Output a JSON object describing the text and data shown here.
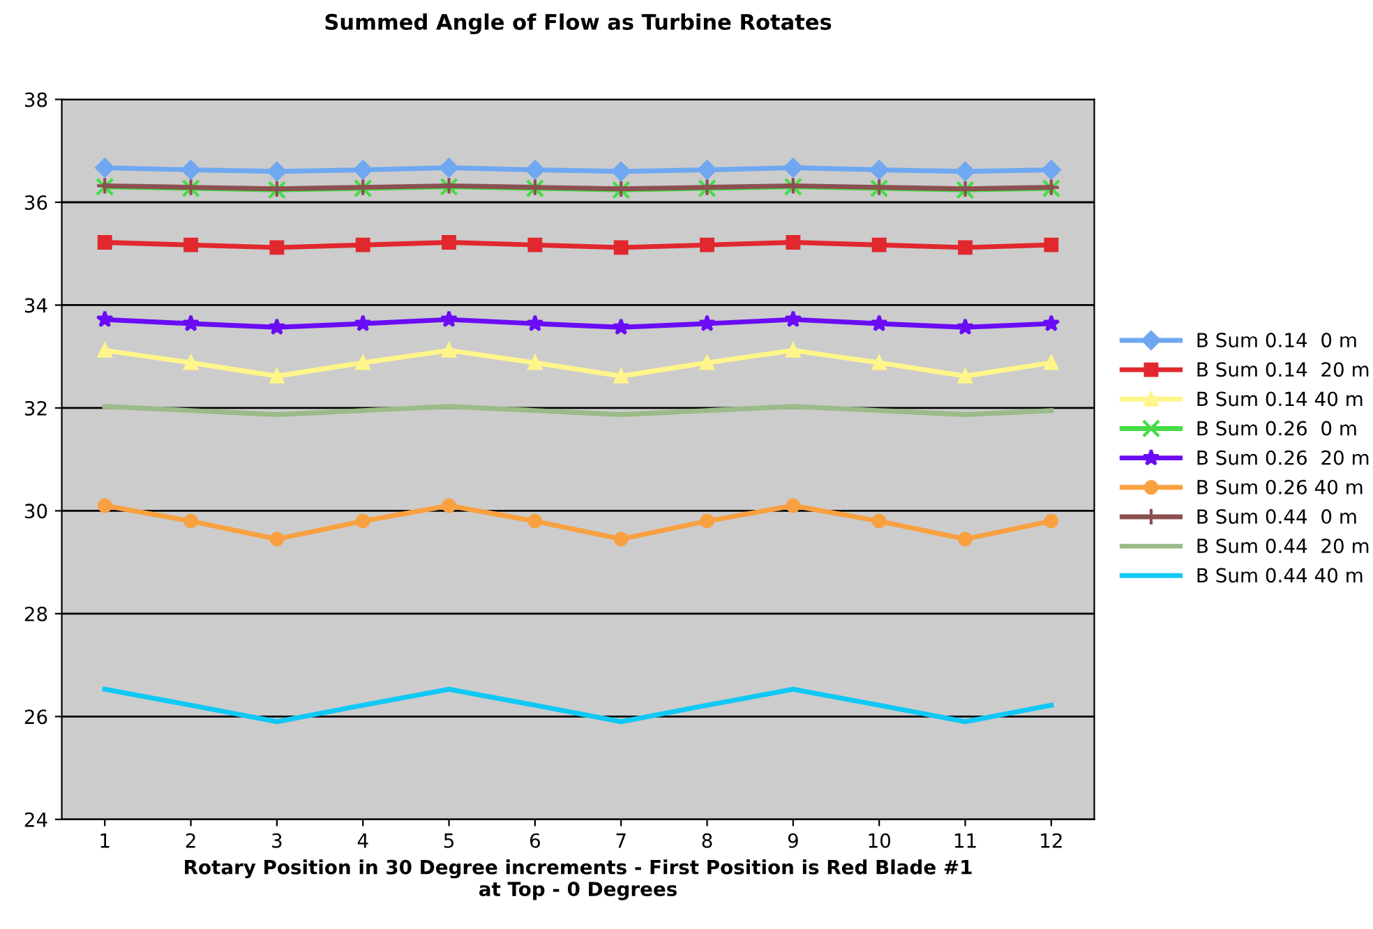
{
  "chart_data": {
    "type": "line",
    "title": "Summed Angle of Flow as Turbine Rotates",
    "xlabel": "Rotary Position in 30 Degree increments - First Position is Red Blade #1\nat Top - 0 Degrees",
    "categories": [
      "1",
      "2",
      "3",
      "4",
      "5",
      "6",
      "7",
      "8",
      "9",
      "10",
      "11",
      "12"
    ],
    "series": [
      {
        "name": "B Sum 0.14  0 m",
        "color": "#6fa8f0",
        "marker": "diamond",
        "values": [
          36.67,
          36.63,
          36.6,
          36.63,
          36.67,
          36.63,
          36.6,
          36.63,
          36.67,
          36.63,
          36.6,
          36.63
        ]
      },
      {
        "name": "B Sum 0.14  20 m",
        "color": "#e0282e",
        "marker": "square",
        "values": [
          35.22,
          35.17,
          35.12,
          35.17,
          35.22,
          35.17,
          35.12,
          35.17,
          35.22,
          35.17,
          35.12,
          35.17
        ]
      },
      {
        "name": "B Sum 0.14 40 m",
        "color": "#fff58a",
        "marker": "triangle",
        "values": [
          33.12,
          32.88,
          32.62,
          32.88,
          33.12,
          32.88,
          32.62,
          32.88,
          33.12,
          32.88,
          32.62,
          32.88
        ]
      },
      {
        "name": "B Sum 0.26  0 m",
        "color": "#44dd44",
        "marker": "cross",
        "values": [
          36.3,
          36.27,
          36.24,
          36.27,
          36.3,
          36.27,
          36.24,
          36.27,
          36.3,
          36.27,
          36.24,
          36.27
        ]
      },
      {
        "name": "B Sum 0.26  20 m",
        "color": "#6a0cf5",
        "marker": "star",
        "values": [
          33.72,
          33.64,
          33.57,
          33.64,
          33.72,
          33.64,
          33.57,
          33.64,
          33.72,
          33.64,
          33.57,
          33.64
        ]
      },
      {
        "name": "B Sum 0.26 40 m",
        "color": "#f9a040",
        "marker": "circle",
        "values": [
          30.1,
          29.8,
          29.45,
          29.8,
          30.1,
          29.8,
          29.45,
          29.8,
          30.1,
          29.8,
          29.45,
          29.8
        ]
      },
      {
        "name": "B Sum 0.44  0 m",
        "color": "#8b5050",
        "marker": "plus",
        "values": [
          36.32,
          36.29,
          36.26,
          36.29,
          36.32,
          36.29,
          36.26,
          36.29,
          36.32,
          36.29,
          36.26,
          36.29
        ]
      },
      {
        "name": "B Sum 0.44  20 m",
        "color": "#9bbb88",
        "marker": "none",
        "values": [
          32.03,
          31.95,
          31.87,
          31.95,
          32.03,
          31.95,
          31.87,
          31.95,
          32.03,
          31.95,
          31.87,
          31.95
        ]
      },
      {
        "name": "B Sum 0.44 40 m",
        "color": "#10c8f5",
        "marker": "none",
        "values": [
          26.53,
          26.22,
          25.9,
          26.22,
          26.53,
          26.22,
          25.9,
          26.22,
          26.53,
          26.22,
          25.9,
          26.22
        ]
      }
    ],
    "ylim": [
      24,
      38
    ],
    "yticks": [
      24,
      26,
      28,
      30,
      32,
      34,
      36,
      38
    ],
    "grid": "y",
    "legend": "right",
    "line_style": "solid"
  }
}
